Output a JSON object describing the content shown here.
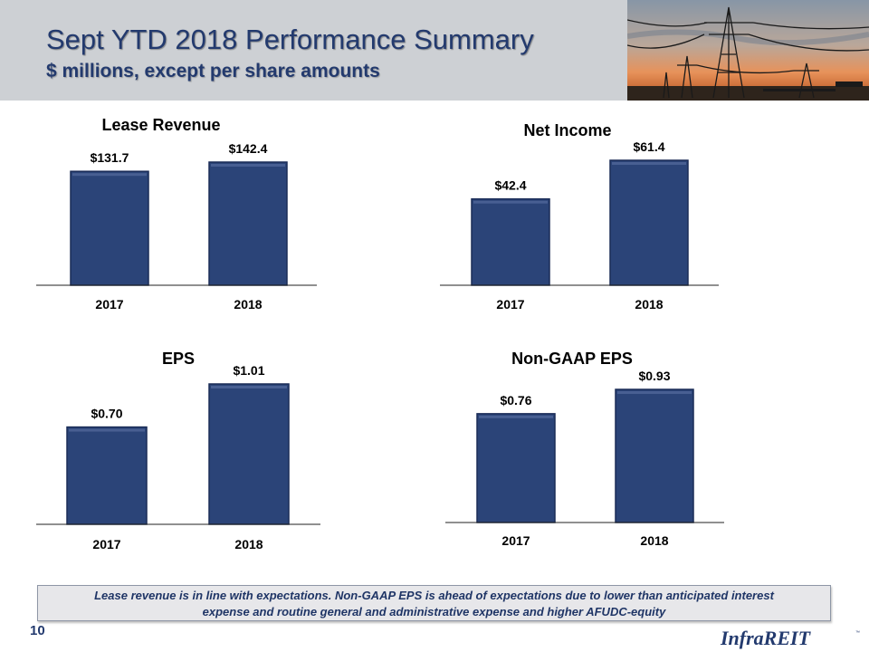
{
  "header": {
    "title": "Sept YTD 2018 Performance Summary",
    "subtitle": "$ millions, except per share amounts"
  },
  "chart_data": [
    {
      "type": "bar",
      "title": "Lease Revenue",
      "categories": [
        "2017",
        "2018"
      ],
      "values": [
        131.7,
        142.4
      ],
      "labels": [
        "$131.7",
        "$142.4"
      ],
      "ylim": [
        0,
        142.4
      ]
    },
    {
      "type": "bar",
      "title": "Net Income",
      "categories": [
        "2017",
        "2018"
      ],
      "values": [
        42.4,
        61.4
      ],
      "labels": [
        "$42.4",
        "$61.4"
      ],
      "ylim": [
        0,
        61.4
      ]
    },
    {
      "type": "bar",
      "title": "EPS",
      "categories": [
        "2017",
        "2018"
      ],
      "values": [
        0.7,
        1.01
      ],
      "labels": [
        "$0.70",
        "$1.01"
      ],
      "ylim": [
        0,
        1.01
      ]
    },
    {
      "type": "bar",
      "title": "Non-GAAP EPS",
      "categories": [
        "2017",
        "2018"
      ],
      "values": [
        0.76,
        0.93
      ],
      "labels": [
        "$0.76",
        "$0.93"
      ],
      "ylim": [
        0,
        0.93
      ]
    }
  ],
  "note": {
    "line1": "Lease revenue is in line with expectations. Non-GAAP EPS is ahead of expectations due to lower than anticipated interest",
    "line2": "expense and routine general and administrative expense and higher AFUDC-equity"
  },
  "footer": {
    "page_number": "10",
    "logo_text": "InfraREIT"
  },
  "colors": {
    "bar": "#2b4478",
    "bar_edge": "#1a2c57",
    "title": "#233a6e"
  }
}
